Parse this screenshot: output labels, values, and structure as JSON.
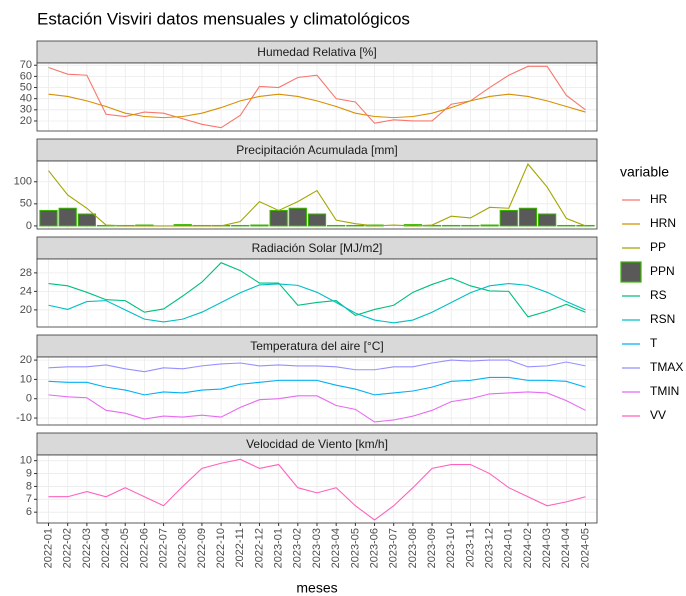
{
  "title": "Estación Visviri datos mensuales y climatológicos",
  "x_label": "meses",
  "categories": [
    "2022-01",
    "2022-02",
    "2022-03",
    "2022-04",
    "2022-05",
    "2022-06",
    "2022-07",
    "2022-08",
    "2022-09",
    "2022-10",
    "2022-11",
    "2022-12",
    "2023-01",
    "2023-02",
    "2023-03",
    "2023-04",
    "2023-05",
    "2023-06",
    "2023-07",
    "2023-08",
    "2023-09",
    "2023-10",
    "2023-11",
    "2023-12",
    "2024-01",
    "2024-02",
    "2024-03",
    "2024-04",
    "2024-05"
  ],
  "legend": {
    "title": "variable",
    "position": "right"
  },
  "grid": true,
  "chart_data": [
    {
      "type": "line",
      "title": "Humedad Relativa [%]",
      "ylim": [
        11,
        72
      ],
      "yticks": [
        20,
        30,
        40,
        50,
        60,
        70
      ],
      "series": [
        {
          "name": "HR",
          "color": "#F8766D",
          "values": [
            68,
            62,
            61,
            26,
            24,
            28,
            27,
            22,
            17,
            14,
            25,
            51,
            50,
            59,
            61,
            40,
            37,
            18,
            21,
            20,
            20,
            35,
            38,
            50,
            61,
            69,
            69,
            43,
            30
          ]
        },
        {
          "name": "HRN",
          "color": "#D89000",
          "values": [
            44,
            42,
            38,
            33,
            27,
            24,
            23,
            24,
            27,
            32,
            38,
            42,
            44,
            42,
            38,
            33,
            27,
            24,
            23,
            24,
            27,
            32,
            38,
            42,
            44,
            42,
            38,
            33,
            28
          ]
        }
      ]
    },
    {
      "type": "line",
      "title": "Precipitación Acumulada [mm]",
      "ylim": [
        -7,
        147
      ],
      "yticks": [
        0,
        50,
        100
      ],
      "series": [
        {
          "name": "PP",
          "color": "#A3A500",
          "values": [
            125,
            70,
            40,
            2,
            0,
            0,
            0,
            0,
            0,
            0,
            10,
            55,
            35,
            55,
            80,
            13,
            5,
            0,
            2,
            0,
            2,
            22,
            18,
            42,
            40,
            140,
            88,
            17,
            0
          ]
        },
        {
          "name": "PPN",
          "type": "bar",
          "color": "#39B600",
          "fill": "#595959",
          "values": [
            35,
            40,
            27,
            1,
            1,
            2,
            0,
            3,
            1,
            1,
            1,
            2,
            35,
            40,
            27,
            1,
            1,
            2,
            0,
            3,
            1,
            1,
            1,
            2,
            35,
            40,
            27,
            1,
            1
          ]
        }
      ]
    },
    {
      "type": "line",
      "title": "Radiación Solar [MJ/m2]",
      "ylim": [
        16.3,
        31
      ],
      "yticks": [
        20,
        24,
        28
      ],
      "series": [
        {
          "name": "RS",
          "color": "#00BF7D",
          "values": [
            25.7,
            25.2,
            23.8,
            22.2,
            22.0,
            19.5,
            20.2,
            23.0,
            26.0,
            30.2,
            28.5,
            25.8,
            25.8,
            21.0,
            21.6,
            22.0,
            18.8,
            20.1,
            21.0,
            23.8,
            25.5,
            26.9,
            25.2,
            24.1,
            24.0,
            18.5,
            19.7,
            21.2,
            19.5
          ]
        },
        {
          "name": "RSN",
          "color": "#00BFC4",
          "values": [
            21.0,
            20.1,
            21.8,
            22.0,
            20.0,
            18.0,
            17.4,
            18.0,
            19.5,
            21.6,
            23.7,
            25.4,
            25.6,
            25.3,
            23.8,
            21.6,
            19.3,
            17.8,
            17.2,
            17.8,
            19.5,
            21.6,
            23.7,
            25.2,
            25.7,
            25.3,
            23.8,
            21.8,
            20.0
          ]
        }
      ]
    },
    {
      "type": "line",
      "title": "Temperatura del aire [°C]",
      "ylim": [
        -13.6,
        21.6
      ],
      "yticks": [
        -10,
        0,
        10,
        20
      ],
      "series": [
        {
          "name": "T",
          "color": "#00B0F6",
          "values": [
            9,
            8.5,
            8.5,
            6,
            4.5,
            2,
            3.5,
            3,
            4.5,
            5,
            7.5,
            8.5,
            9.5,
            9.5,
            9.5,
            7,
            5,
            2,
            3,
            4,
            6,
            9,
            9.5,
            11,
            11,
            9.5,
            9.5,
            9,
            6
          ]
        },
        {
          "name": "TMAX",
          "color": "#9590FF",
          "values": [
            16,
            16.5,
            16.5,
            17.5,
            15.5,
            14,
            16,
            15.5,
            17,
            18,
            18.5,
            17,
            17.5,
            17,
            17,
            16.5,
            15,
            15,
            16.5,
            16.5,
            18.5,
            20,
            19.5,
            20,
            20,
            16.5,
            17,
            19,
            17
          ]
        },
        {
          "name": "TMIN",
          "color": "#E76BF3",
          "values": [
            2,
            1,
            0.5,
            -6,
            -7.5,
            -10.5,
            -9,
            -9.5,
            -8.5,
            -9.5,
            -4.5,
            -0.5,
            0,
            1.5,
            1.5,
            -3.5,
            -5.5,
            -12,
            -11,
            -9,
            -6,
            -1.5,
            0,
            2.5,
            3,
            3.5,
            3,
            -1,
            -6
          ]
        }
      ]
    },
    {
      "type": "line",
      "title": "Velocidad de Viento [km/h]",
      "ylim": [
        5.16,
        10.44
      ],
      "yticks": [
        6,
        7,
        8,
        9,
        10
      ],
      "series": [
        {
          "name": "VV",
          "color": "#FF62BC",
          "values": [
            7.2,
            7.2,
            7.6,
            7.2,
            7.9,
            7.2,
            6.5,
            8.0,
            9.4,
            9.8,
            10.1,
            9.4,
            9.7,
            7.9,
            7.5,
            7.9,
            6.5,
            5.4,
            6.5,
            7.9,
            9.4,
            9.7,
            9.7,
            9.0,
            7.9,
            7.2,
            6.5,
            6.8,
            7.2
          ]
        }
      ]
    }
  ]
}
